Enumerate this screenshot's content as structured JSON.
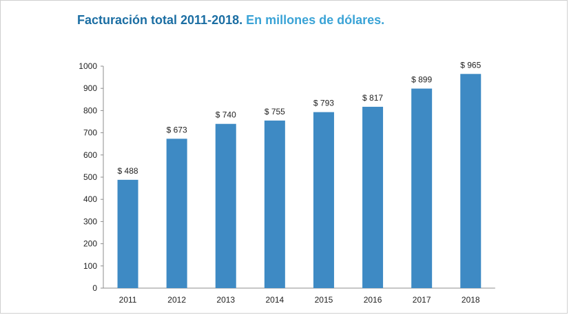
{
  "title": {
    "main": "Facturación total 2011-2018.",
    "sub": "En millones de dólares."
  },
  "colors": {
    "bar": "#3e8ac4",
    "title_main": "#1b6ea3",
    "title_sub": "#3aa3d6"
  },
  "chart_data": {
    "type": "bar",
    "title": "Facturación total 2011-2018. En millones de dólares.",
    "categories": [
      "2011",
      "2012",
      "2013",
      "2014",
      "2015",
      "2016",
      "2017",
      "2018"
    ],
    "values": [
      488,
      673,
      740,
      755,
      793,
      817,
      899,
      965
    ],
    "data_labels": [
      "$ 488",
      "$ 673",
      "$ 740",
      "$ 755",
      "$ 793",
      "$ 817",
      "$ 899",
      "$ 965"
    ],
    "ylim": [
      0,
      1000
    ],
    "yticks": [
      0,
      100,
      200,
      300,
      400,
      500,
      600,
      700,
      800,
      900,
      1000
    ],
    "xlabel": "",
    "ylabel": "",
    "grid": false,
    "legend": "none"
  }
}
